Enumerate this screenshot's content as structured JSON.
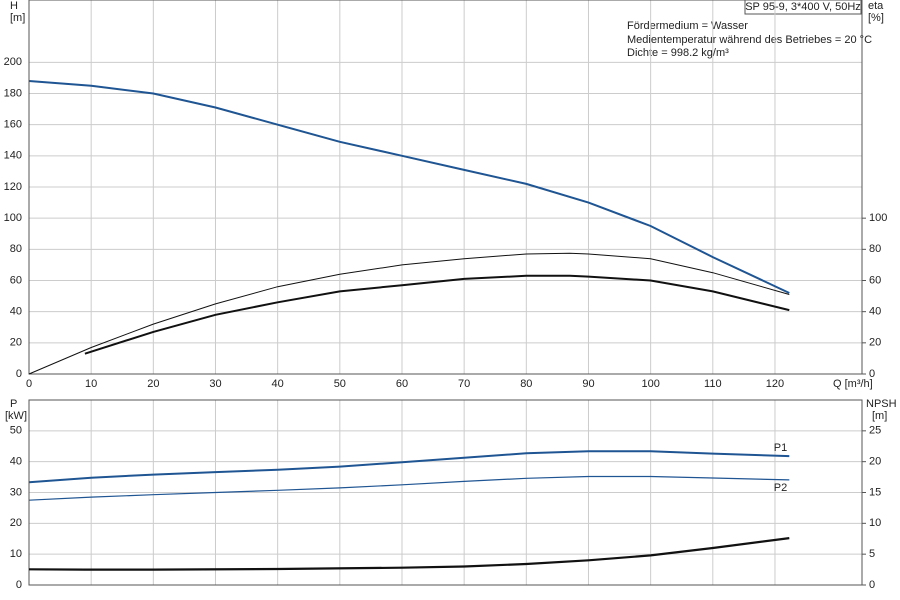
{
  "chart_data": [
    {
      "type": "line",
      "title": "SP 95-9, 3*400 V, 50Hz",
      "annotations": [
        "Fördermedium = Wasser",
        "Medientemperatur während des Betriebes = 20 °C",
        "Dichte = 998.2 kg/m³"
      ],
      "y_label": "H",
      "y_unit": "[m]",
      "y2_label": "eta",
      "y2_unit": "[%]",
      "x_label": "Q [m³/h]",
      "xlim": [
        0,
        134
      ],
      "xticks": [
        0,
        10,
        20,
        30,
        40,
        50,
        60,
        70,
        80,
        90,
        100,
        110,
        120
      ],
      "ylim": [
        0,
        240
      ],
      "yticks": [
        0,
        20,
        40,
        60,
        80,
        100,
        120,
        140,
        160,
        180,
        200
      ],
      "y2lim": [
        0,
        240
      ],
      "y2ticks": [
        0,
        20,
        40,
        60,
        80,
        100
      ],
      "grid": true,
      "series": [
        {
          "color": "#1f5592",
          "width": 2,
          "x": [
            0,
            10,
            20,
            30,
            40,
            50,
            60,
            70,
            80,
            90,
            100,
            110,
            122.3
          ],
          "values": [
            188,
            185,
            180,
            171,
            160,
            149,
            140,
            131,
            122,
            110,
            95,
            75,
            52
          ]
        },
        {
          "color": "#111111",
          "width": 1,
          "axis": "y2",
          "x": [
            0,
            10,
            20,
            30,
            40,
            50,
            60,
            70,
            80,
            87,
            90,
            100,
            110,
            122.3
          ],
          "values": [
            0,
            17,
            32,
            45,
            56,
            64,
            70,
            74,
            77,
            77.5,
            77,
            74,
            65,
            51
          ]
        },
        {
          "color": "#111111",
          "width": 2,
          "axis": "y2",
          "x": [
            9,
            20,
            30,
            40,
            50,
            60,
            70,
            80,
            87,
            90,
            100,
            110,
            122.3
          ],
          "values": [
            13,
            27,
            38,
            46,
            53,
            57,
            61,
            63,
            63,
            62.5,
            60,
            53,
            41
          ]
        }
      ]
    },
    {
      "type": "line",
      "y_label": "P",
      "y_unit": "[kW]",
      "y2_label": "NPSH",
      "y2_unit": "[m]",
      "xlim": [
        0,
        134
      ],
      "xticks": [
        0,
        10,
        20,
        30,
        40,
        50,
        60,
        70,
        80,
        90,
        100,
        110,
        120
      ],
      "ylim": [
        0,
        60
      ],
      "yticks": [
        0,
        10,
        20,
        30,
        40,
        50
      ],
      "y2lim": [
        0,
        30
      ],
      "y2ticks": [
        0,
        5,
        10,
        15,
        20,
        25
      ],
      "grid": true,
      "series": [
        {
          "name": "P1",
          "color": "#1f5592",
          "width": 2,
          "x": [
            0,
            10,
            20,
            30,
            40,
            50,
            60,
            70,
            80,
            90,
            100,
            110,
            122.3
          ],
          "values": [
            33.3,
            34.8,
            35.8,
            36.6,
            37.4,
            38.4,
            39.8,
            41.3,
            42.7,
            43.4,
            43.4,
            42.6,
            41.8
          ]
        },
        {
          "name": "P2",
          "color": "#1f5592",
          "width": 1.2,
          "x": [
            0,
            10,
            20,
            30,
            40,
            50,
            60,
            70,
            80,
            90,
            100,
            110,
            122.3
          ],
          "values": [
            27.5,
            28.5,
            29.3,
            30,
            30.7,
            31.5,
            32.5,
            33.6,
            34.6,
            35.2,
            35.2,
            34.7,
            34.1
          ]
        },
        {
          "color": "#111111",
          "width": 2.2,
          "axis": "y2",
          "x": [
            0,
            9,
            20,
            40,
            60,
            70,
            80,
            90,
            100,
            110,
            122.3
          ],
          "values": [
            2.55,
            2.5,
            2.5,
            2.6,
            2.8,
            3.0,
            3.4,
            4.0,
            4.8,
            6.0,
            7.6
          ]
        }
      ]
    }
  ]
}
